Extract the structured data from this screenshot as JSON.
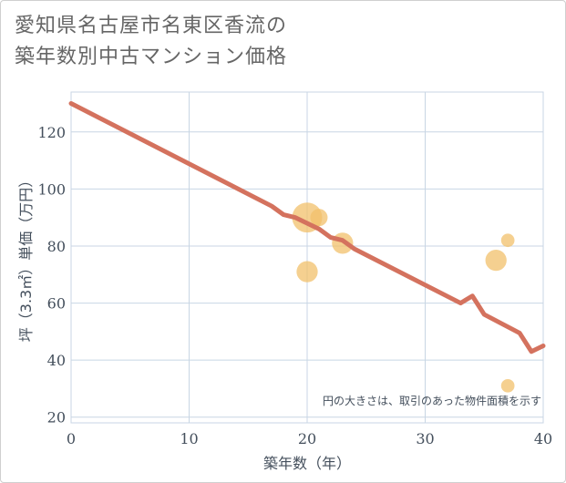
{
  "title_lines": [
    "愛知県名古屋市名東区香流の",
    "築年数別中古マンション価格"
  ],
  "colors": {
    "line": "#d4725e",
    "bubble": "#f2c06b",
    "grid": "#c8d6e4",
    "text": "#444f5c"
  },
  "chart_data": {
    "type": "scatter",
    "title": "愛知県名古屋市名東区香流の築年数別中古マンション価格",
    "xlabel": "築年数（年）",
    "ylabel": "坪（3.3㎡）単価（万円）",
    "xlim": [
      0,
      40
    ],
    "ylim": [
      18,
      134
    ],
    "xticks": [
      0,
      10,
      20,
      30,
      40
    ],
    "yticks": [
      20,
      40,
      60,
      80,
      100,
      120
    ],
    "grid": true,
    "note": "円の大きさは、取引のあった物件面積を示す",
    "trend_line": {
      "x": [
        0,
        17,
        18,
        19,
        20,
        21,
        22,
        23,
        24,
        33,
        34,
        35,
        38,
        39,
        40
      ],
      "y": [
        130,
        94,
        91,
        90,
        88,
        86,
        83,
        82,
        79,
        60,
        62.5,
        56,
        49.5,
        43,
        45
      ]
    },
    "bubbles": [
      {
        "x": 20,
        "y": 90,
        "size": 3.0
      },
      {
        "x": 21,
        "y": 90,
        "size": 1.0
      },
      {
        "x": 23,
        "y": 81,
        "size": 1.5
      },
      {
        "x": 20,
        "y": 71,
        "size": 1.5
      },
      {
        "x": 36,
        "y": 75,
        "size": 1.5
      },
      {
        "x": 37,
        "y": 82,
        "size": 0.6
      },
      {
        "x": 37,
        "y": 31,
        "size": 0.6
      }
    ]
  }
}
